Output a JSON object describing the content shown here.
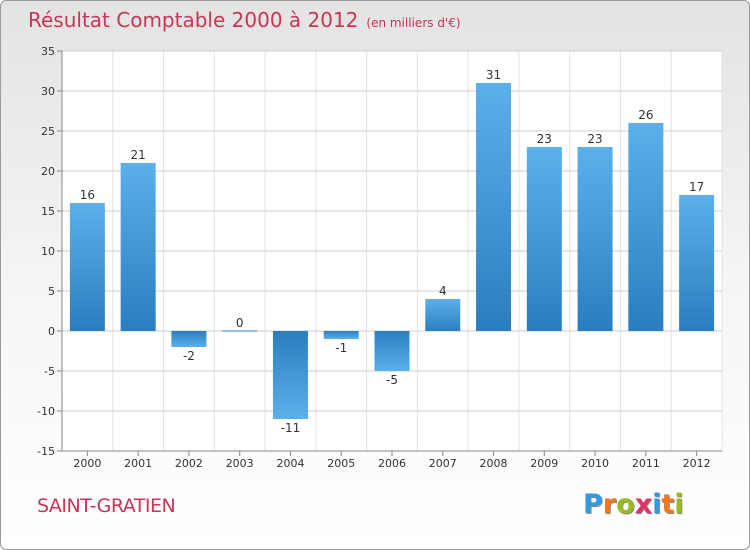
{
  "header": {
    "title": "Résultat Comptable 2000 à 2012",
    "subtitle": "(en milliers d'€)"
  },
  "footer": {
    "commune": "SAINT-GRATIEN"
  },
  "logo": {
    "letters": [
      "P",
      "r",
      "o",
      "x",
      "i",
      "t",
      "i"
    ],
    "colors": [
      "#3399dd",
      "#ee7722",
      "#99bb22",
      "#dd3366",
      "#3399dd",
      "#ee7722",
      "#99bb22"
    ]
  },
  "chart_data": {
    "type": "bar",
    "title": "Résultat Comptable 2000 à 2012",
    "xlabel": "",
    "ylabel": "",
    "categories": [
      "2000",
      "2001",
      "2002",
      "2003",
      "2004",
      "2005",
      "2006",
      "2007",
      "2008",
      "2009",
      "2010",
      "2011",
      "2012"
    ],
    "values": [
      16,
      21,
      -2,
      0,
      -11,
      -1,
      -5,
      4,
      31,
      23,
      23,
      26,
      17
    ],
    "ylim": [
      -15,
      35
    ],
    "yticks": [
      -15,
      -10,
      -5,
      0,
      5,
      10,
      15,
      20,
      25,
      30,
      35
    ],
    "grid": "horizontal",
    "bar_color_dark": "#2a7ec0",
    "bar_color_light": "#5bb0ea"
  }
}
